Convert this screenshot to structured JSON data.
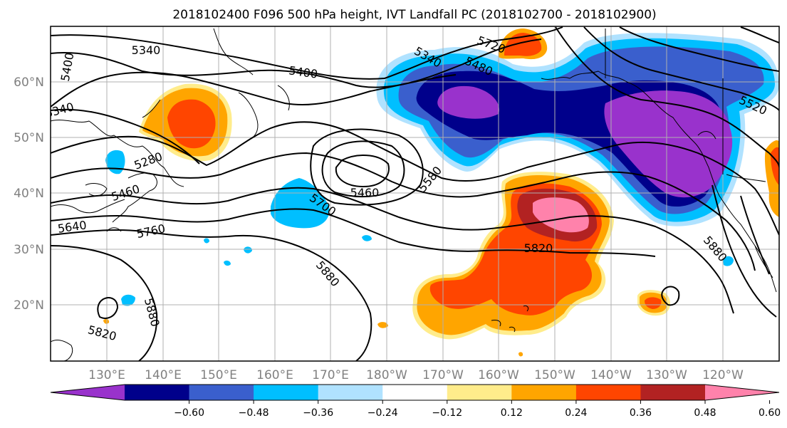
{
  "title": "2018102400 F096 500 hPa height, IVT Landfall PC (2018102700 - 2018102900)",
  "lon_labels": [
    "130°E",
    "140°E",
    "150°E",
    "160°E",
    "170°E",
    "180°W",
    "170°W",
    "160°W",
    "150°W",
    "140°W",
    "130°W",
    "120°W"
  ],
  "lat_labels": [
    "60°N",
    "50°N",
    "40°N",
    "30°N",
    "20°N"
  ],
  "contour_labels": [
    "5340",
    "5400",
    "5400",
    "5340",
    "5280",
    "5460",
    "5640",
    "5760",
    "5700",
    "5460",
    "5580",
    "5820",
    "5880",
    "5880",
    "5820",
    "5340",
    "5480",
    "5520",
    "5880",
    "5720"
  ],
  "colorbar": {
    "colors": [
      "#9932cc",
      "#00008b",
      "#3a5fcd",
      "#00bfff",
      "#b0e2ff",
      "#ffffff",
      "#ffec8b",
      "#ffa500",
      "#ff4500",
      "#b22222",
      "#ff82ab"
    ],
    "ticks": [
      "−0.60",
      "−0.48",
      "−0.36",
      "−0.24",
      "−0.12",
      "0.12",
      "0.24",
      "0.36",
      "0.48",
      "0.60"
    ]
  },
  "colors": {
    "grid": "#b0b0b0",
    "coast": "#000000",
    "contour": "#000000"
  }
}
